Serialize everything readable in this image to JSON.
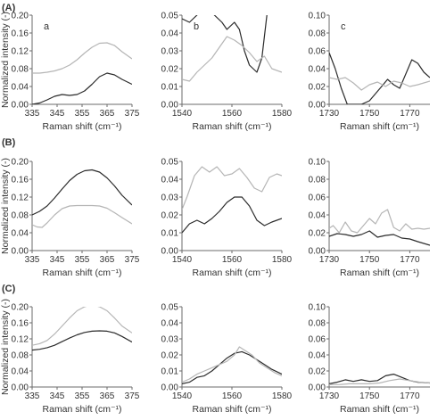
{
  "figure": {
    "row_labels": [
      "(A)",
      "(B)",
      "(C)"
    ],
    "panel_letters": [
      "a",
      "b",
      "c"
    ]
  },
  "style": {
    "dark_color": "#2b2b2b",
    "light_color": "#b5b5b5",
    "axis_color": "#6b6b6b"
  },
  "chart_data": [
    {
      "type": "line",
      "row": 0,
      "col": 0,
      "letter": "a",
      "xlabel": "Raman shift (cm⁻¹)",
      "ylabel": "Normalized intensity (-)",
      "xlim": [
        335,
        375
      ],
      "ylim": [
        0,
        0.2
      ],
      "xticks": [
        335,
        345,
        355,
        365,
        375
      ],
      "yticks": [
        0,
        0.04,
        0.08,
        0.12,
        0.16,
        0.2
      ],
      "xtick_labels": [
        "335",
        "345",
        "355",
        "365",
        "375"
      ],
      "ytick_labels": [
        "0.00",
        "0.04",
        "0.08",
        "0.12",
        "0.16",
        "0.20"
      ],
      "series": [
        {
          "color": "dark",
          "x": [
            335,
            338,
            341,
            344,
            347,
            350,
            353,
            356,
            359,
            362,
            365,
            368,
            371,
            375
          ],
          "y": [
            0.0,
            0.003,
            0.01,
            0.018,
            0.022,
            0.02,
            0.022,
            0.03,
            0.045,
            0.062,
            0.07,
            0.066,
            0.056,
            0.045
          ]
        },
        {
          "color": "light",
          "x": [
            335,
            338,
            341,
            344,
            347,
            350,
            353,
            356,
            359,
            362,
            365,
            368,
            371,
            375
          ],
          "y": [
            0.07,
            0.07,
            0.072,
            0.075,
            0.08,
            0.088,
            0.1,
            0.115,
            0.128,
            0.137,
            0.138,
            0.132,
            0.118,
            0.102
          ]
        }
      ]
    },
    {
      "type": "line",
      "row": 0,
      "col": 1,
      "letter": "b",
      "xlabel": "Raman shift (cm⁻¹)",
      "ylabel": "",
      "xlim": [
        1540,
        1580
      ],
      "ylim": [
        0,
        0.05
      ],
      "xticks": [
        1540,
        1560,
        1580
      ],
      "yticks": [
        0,
        0.01,
        0.02,
        0.03,
        0.04,
        0.05
      ],
      "xtick_labels": [
        "1540",
        "1560",
        "1580"
      ],
      "ytick_labels": [
        "0.00",
        "0.01",
        "0.02",
        "0.03",
        "0.04",
        "0.05"
      ],
      "series": [
        {
          "color": "dark",
          "x": [
            1540,
            1543,
            1546,
            1548,
            1551,
            1553,
            1556,
            1558,
            1561,
            1563,
            1565,
            1567,
            1570,
            1572,
            1574,
            1576
          ],
          "y": [
            0.048,
            0.046,
            0.05,
            0.056,
            0.054,
            0.05,
            0.046,
            0.042,
            0.046,
            0.042,
            0.03,
            0.022,
            0.018,
            0.026,
            0.05,
            0.06
          ]
        },
        {
          "color": "light",
          "x": [
            1540,
            1543,
            1546,
            1549,
            1552,
            1555,
            1558,
            1561,
            1564,
            1567,
            1570,
            1573,
            1576,
            1580
          ],
          "y": [
            0.014,
            0.013,
            0.018,
            0.022,
            0.026,
            0.032,
            0.038,
            0.036,
            0.033,
            0.029,
            0.024,
            0.027,
            0.02,
            0.018
          ]
        }
      ]
    },
    {
      "type": "line",
      "row": 0,
      "col": 2,
      "letter": "c",
      "xlabel": "Raman shift (cm⁻¹)",
      "ylabel": "",
      "xlim": [
        1730,
        1780
      ],
      "ylim": [
        0,
        0.1
      ],
      "xticks": [
        1730,
        1750,
        1770
      ],
      "yticks": [
        0,
        0.02,
        0.04,
        0.06,
        0.08,
        0.1
      ],
      "xtick_labels": [
        "1730",
        "1750",
        "1770"
      ],
      "ytick_labels": [
        "0.00",
        "0.02",
        "0.04",
        "0.06",
        "0.08",
        "0.10"
      ],
      "series": [
        {
          "color": "dark",
          "x": [
            1730,
            1733,
            1736,
            1739,
            1742,
            1746,
            1750,
            1753,
            1756,
            1759,
            1762,
            1765,
            1768,
            1771,
            1774,
            1777,
            1780
          ],
          "y": [
            0.058,
            0.04,
            0.018,
            0.0,
            0.0,
            0.0,
            0.004,
            0.012,
            0.02,
            0.028,
            0.022,
            0.018,
            0.034,
            0.05,
            0.046,
            0.036,
            0.03
          ]
        },
        {
          "color": "light",
          "x": [
            1730,
            1734,
            1738,
            1742,
            1746,
            1750,
            1754,
            1758,
            1762,
            1766,
            1770,
            1774,
            1780
          ],
          "y": [
            0.03,
            0.028,
            0.03,
            0.024,
            0.016,
            0.022,
            0.025,
            0.02,
            0.026,
            0.024,
            0.02,
            0.022,
            0.026
          ]
        }
      ]
    },
    {
      "type": "line",
      "row": 1,
      "col": 0,
      "letter": "",
      "xlabel": "Raman shift (cm⁻¹)",
      "ylabel": "Normalized intensity (-)",
      "xlim": [
        335,
        375
      ],
      "ylim": [
        0,
        0.2
      ],
      "xticks": [
        335,
        345,
        355,
        365,
        375
      ],
      "yticks": [
        0,
        0.04,
        0.08,
        0.12,
        0.16,
        0.2
      ],
      "xtick_labels": [
        "335",
        "345",
        "355",
        "365",
        "375"
      ],
      "ytick_labels": [
        "0.00",
        "0.04",
        "0.08",
        "0.12",
        "0.16",
        "0.20"
      ],
      "series": [
        {
          "color": "dark",
          "x": [
            335,
            338,
            341,
            344,
            347,
            350,
            353,
            356,
            359,
            362,
            365,
            368,
            371,
            375
          ],
          "y": [
            0.08,
            0.088,
            0.1,
            0.118,
            0.138,
            0.157,
            0.171,
            0.179,
            0.181,
            0.176,
            0.163,
            0.145,
            0.124,
            0.102
          ]
        },
        {
          "color": "light",
          "x": [
            335,
            337,
            339,
            341,
            344,
            347,
            350,
            353,
            356,
            359,
            362,
            365,
            368,
            371,
            375
          ],
          "y": [
            0.058,
            0.053,
            0.052,
            0.062,
            0.08,
            0.094,
            0.1,
            0.101,
            0.101,
            0.101,
            0.1,
            0.095,
            0.085,
            0.074,
            0.06
          ]
        }
      ]
    },
    {
      "type": "line",
      "row": 1,
      "col": 1,
      "letter": "",
      "xlabel": "Raman shift (cm⁻¹)",
      "ylabel": "",
      "xlim": [
        1540,
        1580
      ],
      "ylim": [
        0,
        0.05
      ],
      "xticks": [
        1540,
        1560,
        1580
      ],
      "yticks": [
        0,
        0.01,
        0.02,
        0.03,
        0.04,
        0.05
      ],
      "xtick_labels": [
        "1540",
        "1560",
        "1580"
      ],
      "ytick_labels": [
        "0.00",
        "0.01",
        "0.02",
        "0.03",
        "0.04",
        "0.05"
      ],
      "series": [
        {
          "color": "dark",
          "x": [
            1540,
            1543,
            1546,
            1549,
            1552,
            1555,
            1558,
            1561,
            1564,
            1567,
            1570,
            1573,
            1576,
            1580
          ],
          "y": [
            0.01,
            0.015,
            0.017,
            0.015,
            0.018,
            0.022,
            0.027,
            0.03,
            0.03,
            0.025,
            0.017,
            0.014,
            0.016,
            0.018
          ]
        },
        {
          "color": "light",
          "x": [
            1540,
            1542,
            1545,
            1548,
            1551,
            1554,
            1557,
            1560,
            1563,
            1566,
            1569,
            1572,
            1575,
            1578,
            1580
          ],
          "y": [
            0.023,
            0.03,
            0.042,
            0.047,
            0.044,
            0.047,
            0.042,
            0.043,
            0.046,
            0.041,
            0.035,
            0.033,
            0.041,
            0.043,
            0.042
          ]
        }
      ]
    },
    {
      "type": "line",
      "row": 1,
      "col": 2,
      "letter": "",
      "xlabel": "Raman shift (cm⁻¹)",
      "ylabel": "",
      "xlim": [
        1730,
        1780
      ],
      "ylim": [
        0,
        0.1
      ],
      "xticks": [
        1730,
        1750,
        1770
      ],
      "yticks": [
        0,
        0.02,
        0.04,
        0.06,
        0.08,
        0.1
      ],
      "xtick_labels": [
        "1730",
        "1750",
        "1770"
      ],
      "ytick_labels": [
        "0.00",
        "0.02",
        "0.04",
        "0.06",
        "0.08",
        "0.10"
      ],
      "series": [
        {
          "color": "dark",
          "x": [
            1730,
            1734,
            1738,
            1742,
            1746,
            1750,
            1754,
            1758,
            1762,
            1766,
            1770,
            1774,
            1780
          ],
          "y": [
            0.016,
            0.019,
            0.018,
            0.016,
            0.018,
            0.022,
            0.015,
            0.017,
            0.018,
            0.014,
            0.013,
            0.01,
            0.006
          ]
        },
        {
          "color": "light",
          "x": [
            1730,
            1732,
            1735,
            1738,
            1741,
            1744,
            1747,
            1750,
            1753,
            1756,
            1759,
            1762,
            1765,
            1768,
            1771,
            1774,
            1777,
            1780
          ],
          "y": [
            0.025,
            0.028,
            0.02,
            0.032,
            0.022,
            0.02,
            0.028,
            0.036,
            0.03,
            0.042,
            0.046,
            0.026,
            0.022,
            0.03,
            0.024,
            0.025,
            0.024,
            0.025
          ]
        }
      ]
    },
    {
      "type": "line",
      "row": 2,
      "col": 0,
      "letter": "",
      "xlabel": "Raman shift (cm⁻¹)",
      "ylabel": "Normalized intensity (-)",
      "xlim": [
        335,
        375
      ],
      "ylim": [
        0,
        0.2
      ],
      "xticks": [
        335,
        345,
        355,
        365,
        375
      ],
      "yticks": [
        0,
        0.04,
        0.08,
        0.12,
        0.16,
        0.2
      ],
      "xtick_labels": [
        "335",
        "345",
        "355",
        "365",
        "375"
      ],
      "ytick_labels": [
        "0.00",
        "0.04",
        "0.08",
        "0.12",
        "0.16",
        "0.20"
      ],
      "series": [
        {
          "color": "dark",
          "x": [
            335,
            338,
            341,
            344,
            347,
            350,
            353,
            356,
            359,
            362,
            365,
            368,
            371,
            375
          ],
          "y": [
            0.092,
            0.094,
            0.098,
            0.104,
            0.113,
            0.122,
            0.13,
            0.136,
            0.139,
            0.14,
            0.139,
            0.135,
            0.126,
            0.112
          ]
        },
        {
          "color": "light",
          "x": [
            335,
            338,
            341,
            344,
            347,
            350,
            353,
            356,
            359,
            362,
            365,
            368,
            371,
            375
          ],
          "y": [
            0.104,
            0.108,
            0.116,
            0.132,
            0.152,
            0.172,
            0.19,
            0.2,
            0.205,
            0.2,
            0.19,
            0.172,
            0.152,
            0.135
          ]
        }
      ]
    },
    {
      "type": "line",
      "row": 2,
      "col": 1,
      "letter": "",
      "xlabel": "Raman shift (cm⁻¹)",
      "ylabel": "",
      "xlim": [
        1540,
        1580
      ],
      "ylim": [
        0,
        0.05
      ],
      "xticks": [
        1540,
        1560,
        1580
      ],
      "yticks": [
        0,
        0.01,
        0.02,
        0.03,
        0.04,
        0.05
      ],
      "xtick_labels": [
        "1540",
        "1560",
        "1580"
      ],
      "ytick_labels": [
        "0.00",
        "0.01",
        "0.02",
        "0.03",
        "0.04",
        "0.05"
      ],
      "series": [
        {
          "color": "dark",
          "x": [
            1540,
            1543,
            1546,
            1549,
            1552,
            1555,
            1558,
            1561,
            1564,
            1567,
            1570,
            1573,
            1576,
            1580
          ],
          "y": [
            0.002,
            0.003,
            0.006,
            0.007,
            0.01,
            0.014,
            0.018,
            0.021,
            0.022,
            0.02,
            0.017,
            0.014,
            0.011,
            0.008
          ]
        },
        {
          "color": "light",
          "x": [
            1540,
            1543,
            1546,
            1549,
            1552,
            1555,
            1558,
            1561,
            1563,
            1565,
            1568,
            1571,
            1574,
            1577,
            1580
          ],
          "y": [
            0.003,
            0.005,
            0.008,
            0.01,
            0.012,
            0.014,
            0.016,
            0.02,
            0.025,
            0.023,
            0.02,
            0.015,
            0.012,
            0.009,
            0.007
          ]
        }
      ]
    },
    {
      "type": "line",
      "row": 2,
      "col": 2,
      "letter": "",
      "xlabel": "Raman shift (cm⁻¹)",
      "ylabel": "",
      "xlim": [
        1730,
        1780
      ],
      "ylim": [
        0,
        0.1
      ],
      "xticks": [
        1730,
        1750,
        1770
      ],
      "yticks": [
        0,
        0.02,
        0.04,
        0.06,
        0.08,
        0.1
      ],
      "xtick_labels": [
        "1730",
        "1750",
        "1770"
      ],
      "ytick_labels": [
        "0.00",
        "0.02",
        "0.04",
        "0.06",
        "0.08",
        "0.10"
      ],
      "series": [
        {
          "color": "dark",
          "x": [
            1730,
            1734,
            1738,
            1742,
            1746,
            1750,
            1754,
            1758,
            1762,
            1766,
            1770,
            1774,
            1780
          ],
          "y": [
            0.004,
            0.006,
            0.009,
            0.007,
            0.009,
            0.007,
            0.008,
            0.014,
            0.016,
            0.012,
            0.008,
            0.006,
            0.005
          ]
        },
        {
          "color": "light",
          "x": [
            1730,
            1735,
            1740,
            1745,
            1750,
            1755,
            1760,
            1765,
            1770,
            1775,
            1780
          ],
          "y": [
            0.003,
            0.003,
            0.004,
            0.004,
            0.004,
            0.005,
            0.008,
            0.01,
            0.008,
            0.006,
            0.005
          ]
        }
      ]
    }
  ]
}
